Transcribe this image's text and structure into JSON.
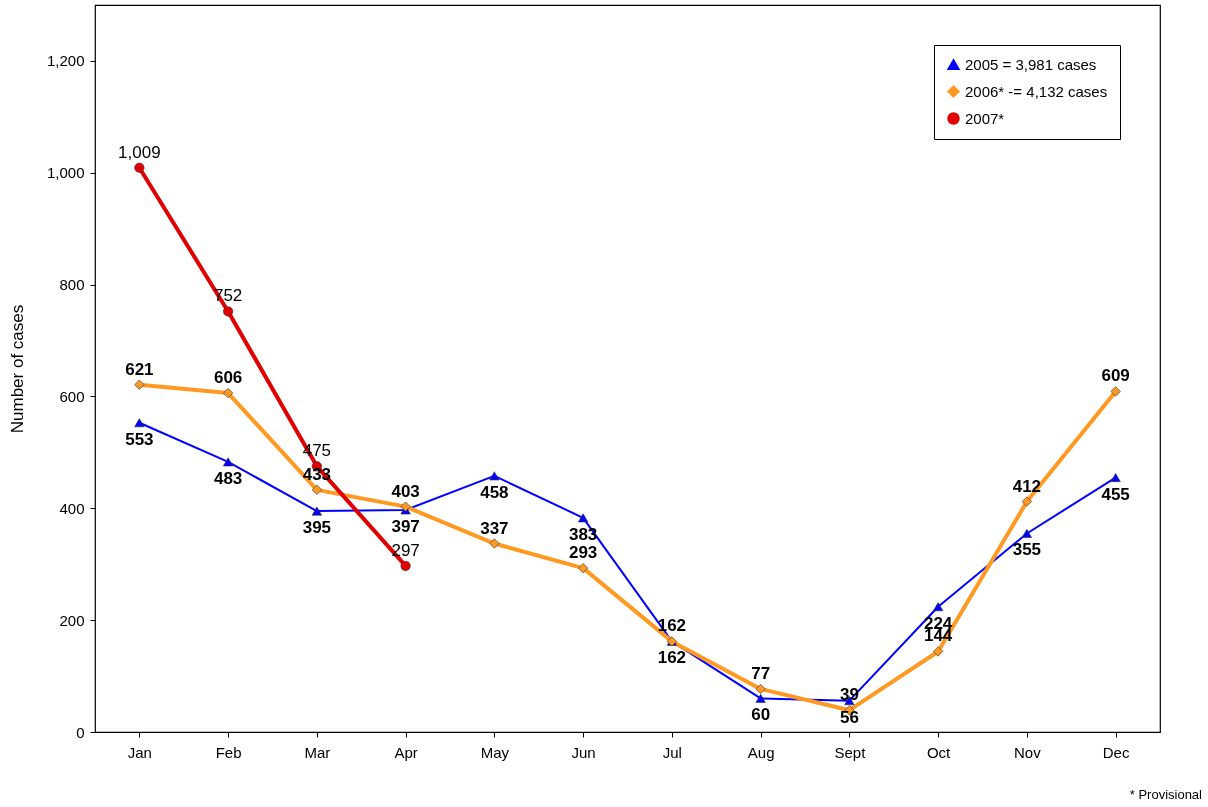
{
  "chart_data": {
    "type": "line",
    "ylabel": "Number of cases",
    "categories": [
      "Jan",
      "Feb",
      "Mar",
      "Apr",
      "May",
      "Jun",
      "Jul",
      "Aug",
      "Sept",
      "Oct",
      "Nov",
      "Dec"
    ],
    "series": [
      {
        "name": "2005 = 3,981 cases",
        "color": "#0000ff",
        "marker": "triangle",
        "values": [
          553,
          483,
          395,
          397,
          458,
          383,
          162,
          60,
          56,
          224,
          355,
          455
        ],
        "value_labels": [
          "553",
          "483",
          "395",
          "397",
          "458",
          "383",
          "162",
          "60",
          "56",
          "224",
          "355",
          "455"
        ]
      },
      {
        "name": "2006* -= 4,132 cases",
        "color": "#ff9922",
        "marker": "diamond",
        "values": [
          621,
          606,
          433,
          403,
          337,
          293,
          162,
          77,
          39,
          144,
          412,
          609
        ],
        "value_labels": [
          "621",
          "606",
          "433",
          "403",
          "337",
          "293",
          "162",
          "77",
          "39",
          "144",
          "412",
          "609"
        ]
      },
      {
        "name": "2007*",
        "color": "#e00000",
        "marker": "circle",
        "values": [
          1009,
          752,
          475,
          297,
          null,
          null,
          null,
          null,
          null,
          null,
          null,
          null
        ],
        "value_labels": [
          "1,009",
          "752",
          "475",
          "297",
          null,
          null,
          null,
          null,
          null,
          null,
          null,
          null
        ]
      }
    ],
    "ylim": [
      0,
      1300
    ],
    "yticks": [
      0,
      200,
      400,
      600,
      800,
      {
        "value": 1000,
        "label": "1,000"
      },
      {
        "value": 1200,
        "label": "1,200"
      }
    ],
    "grid": false,
    "legend": "top right",
    "line_style": "solid",
    "annotations": [
      "* Provisional"
    ]
  }
}
